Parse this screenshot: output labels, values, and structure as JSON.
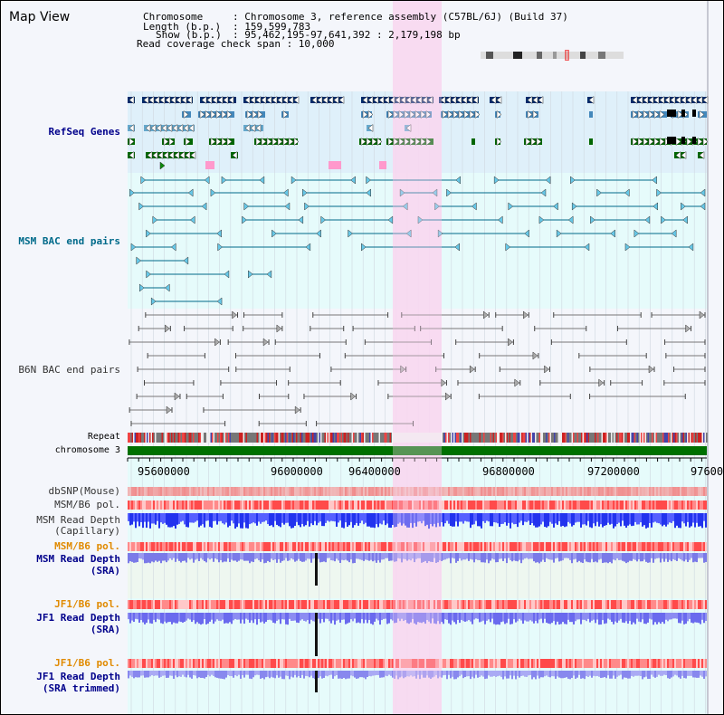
{
  "title": "Map View",
  "info": {
    "chromosome_key": "Chromosome",
    "chromosome_val": ": Chromosome 3, reference assembly (C57BL/6J) (Build 37)",
    "length_key": "Length (b.p.)",
    "length_val": ": 159,599,783",
    "show_key": "Show (b.p.)",
    "show_val": ": 95,462,195-97,641,392 : 2,179,198 bp",
    "coverage": "Read coverage check span : 10,000"
  },
  "tracks": {
    "refseq": "RefSeq Genes",
    "msm_bac": "MSM BAC end pairs",
    "b6n_bac": "B6N BAC end pairs",
    "repeat": "Repeat",
    "chromosome": "chromosome 3",
    "dbsnp": "dbSNP(Mouse)",
    "msm_b6_pol_1": "MSM/B6 pol.",
    "msm_read_depth_cap_1": "MSM Read Depth",
    "msm_read_depth_cap_2": "(Capillary)",
    "msm_b6_pol_2": "MSM/B6 pol.",
    "msm_read_depth_sra_1": "MSM Read Depth",
    "msm_read_depth_sra_2": "(SRA)",
    "jf1_b6_pol_1": "JF1/B6 pol.",
    "jf1_read_depth_sra_1": "JF1 Read Depth",
    "jf1_read_depth_sra_2": "(SRA)",
    "jf1_b6_pol_2": "JF1/B6 pol.",
    "jf1_read_depth_trim_1": "JF1 Read Depth",
    "jf1_read_depth_trim_2": "(SRA trimmed)"
  },
  "axis_ticks": [
    "95600000",
    "96000000",
    "96400000",
    "96800000",
    "97200000",
    "97600"
  ],
  "colors": {
    "refseq_bg": "#dff0fa",
    "msm_bac_bg": "#e6fbfb",
    "highlight": "#f8d8f0",
    "label_blue": "#00008b",
    "label_orange": "#e08a00",
    "label_teal": "#006a8a",
    "chromosome_bar": "#007000"
  }
}
